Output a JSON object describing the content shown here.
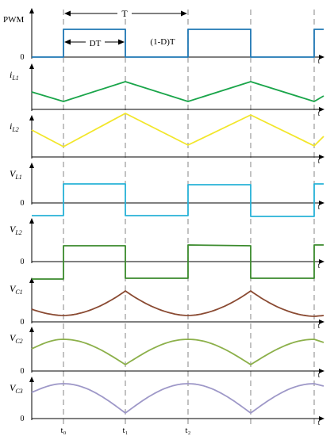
{
  "diagram": {
    "title": "",
    "period": {
      "T_label": "T",
      "DT_label": "DT",
      "offT_label": "(1-D)T"
    },
    "time_markers": [
      "t₀",
      "t₁",
      "t₂"
    ],
    "panels": [
      {
        "id": "pwm",
        "name": "PWM",
        "sub": "",
        "zero_label": "0",
        "axis_label": "t",
        "color": "#1f77b4"
      },
      {
        "id": "il1",
        "name": "i",
        "sub": "L1",
        "zero_label": "",
        "axis_label": "t",
        "color": "#1aa54a"
      },
      {
        "id": "il2",
        "name": "i",
        "sub": "L2",
        "zero_label": "",
        "axis_label": "t",
        "color": "#f2e62a"
      },
      {
        "id": "vl1",
        "name": "V",
        "sub": "L1",
        "zero_label": "0",
        "axis_label": "t",
        "color": "#27b2d8"
      },
      {
        "id": "vl2",
        "name": "V",
        "sub": "L2",
        "zero_label": "0",
        "axis_label": "t",
        "color": "#3a8a2c"
      },
      {
        "id": "vc1",
        "name": "V",
        "sub": "C1",
        "zero_label": "0",
        "axis_label": "t",
        "color": "#8a4a32"
      },
      {
        "id": "vc2",
        "name": "V",
        "sub": "C2",
        "zero_label": "0",
        "axis_label": "t",
        "color": "#8cb04a"
      },
      {
        "id": "vc3",
        "name": "V",
        "sub": "C3",
        "zero_label": "0",
        "axis_label": "t",
        "color": "#9e98c8"
      }
    ]
  }
}
